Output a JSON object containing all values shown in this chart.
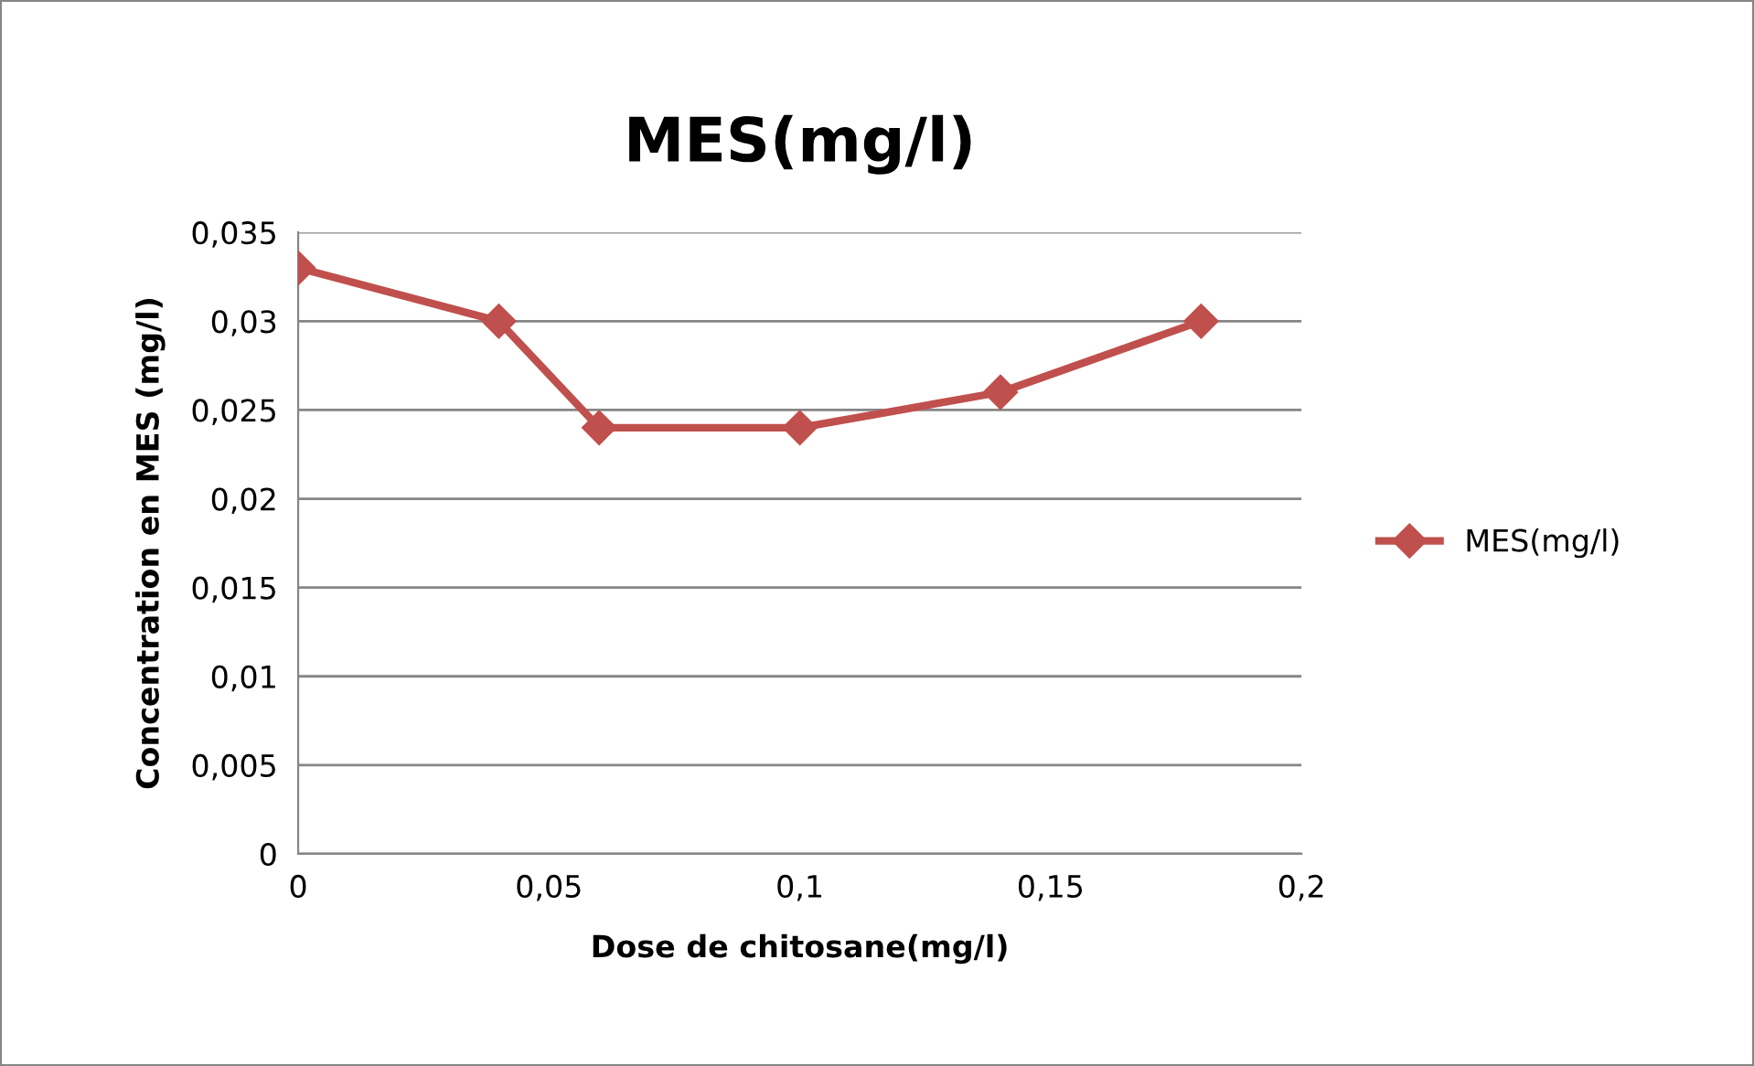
{
  "chart_data": {
    "type": "line",
    "title": "MES(mg/l)",
    "xlabel": "Dose de chitosane(mg/l)",
    "ylabel": "Concentration en MES (mg/l)",
    "x": [
      0,
      0.04,
      0.06,
      0.1,
      0.14,
      0.18
    ],
    "series": [
      {
        "name": "MES(mg/l)",
        "color": "#c0504d",
        "values": [
          0.033,
          0.03,
          0.024,
          0.024,
          0.026,
          0.03
        ]
      }
    ],
    "xlim": [
      0,
      0.2
    ],
    "xticks": [
      0,
      {
        "value": 0.05,
        "label": "0,05"
      },
      {
        "value": 0.1,
        "label": "0,1"
      },
      {
        "value": 0.15,
        "label": "0,15"
      },
      {
        "value": 0.2,
        "label": "0,2"
      }
    ],
    "ylim": [
      0,
      0.035
    ],
    "yticks": [
      0,
      {
        "value": 0.005,
        "label": "0,005"
      },
      {
        "value": 0.01,
        "label": "0,01"
      },
      {
        "value": 0.015,
        "label": "0,015"
      },
      {
        "value": 0.02,
        "label": "0,02"
      },
      {
        "value": 0.025,
        "label": "0,025"
      },
      {
        "value": 0.03,
        "label": "0,03"
      },
      {
        "value": 0.035,
        "label": "0,035"
      }
    ],
    "grid": "y",
    "legend": "right",
    "marker": "diamond",
    "line_style": "solid"
  }
}
